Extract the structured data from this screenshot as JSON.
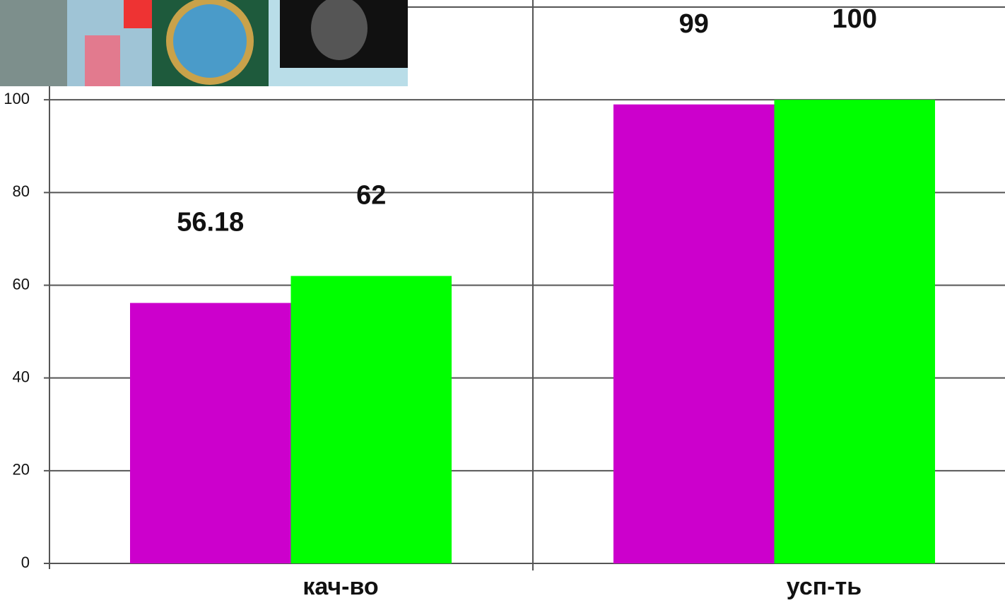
{
  "chart_data": {
    "type": "bar",
    "categories": [
      "кач-во",
      "усп-ть"
    ],
    "series": [
      {
        "color": "#cc00cc",
        "values": [
          56.18,
          99
        ]
      },
      {
        "color": "#00ff00",
        "values": [
          62,
          100
        ]
      }
    ],
    "ylim": [
      0,
      120
    ],
    "yticks": [
      0,
      20,
      40,
      60,
      80,
      100
    ],
    "grid": true
  }
}
